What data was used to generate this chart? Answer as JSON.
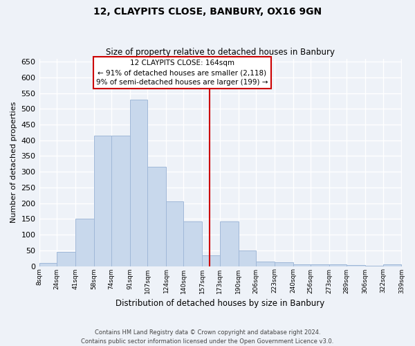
{
  "title": "12, CLAYPITS CLOSE, BANBURY, OX16 9GN",
  "subtitle": "Size of property relative to detached houses in Banbury",
  "xlabel": "Distribution of detached houses by size in Banbury",
  "ylabel": "Number of detached properties",
  "bar_color": "#c8d8ec",
  "bar_edge_color": "#a0b8d8",
  "background_color": "#eef2f8",
  "grid_color": "#ffffff",
  "annotation_box_color": "#cc0000",
  "vline_color": "#cc0000",
  "vline_x": 164,
  "annotation_title": "12 CLAYPITS CLOSE: 164sqm",
  "annotation_line1": "← 91% of detached houses are smaller (2,118)",
  "annotation_line2": "9% of semi-detached houses are larger (199) →",
  "bin_edges": [
    8,
    24,
    41,
    58,
    74,
    91,
    107,
    124,
    140,
    157,
    173,
    190,
    206,
    223,
    240,
    256,
    273,
    289,
    306,
    322,
    339
  ],
  "bin_labels": [
    "8sqm",
    "24sqm",
    "41sqm",
    "58sqm",
    "74sqm",
    "91sqm",
    "107sqm",
    "124sqm",
    "140sqm",
    "157sqm",
    "173sqm",
    "190sqm",
    "206sqm",
    "223sqm",
    "240sqm",
    "256sqm",
    "273sqm",
    "289sqm",
    "306sqm",
    "322sqm",
    "339sqm"
  ],
  "bar_heights": [
    10,
    45,
    150,
    415,
    415,
    530,
    315,
    205,
    143,
    35,
    143,
    50,
    15,
    13,
    5,
    5,
    5,
    3,
    2,
    5
  ],
  "ylim": [
    0,
    660
  ],
  "yticks": [
    0,
    50,
    100,
    150,
    200,
    250,
    300,
    350,
    400,
    450,
    500,
    550,
    600,
    650
  ],
  "footer_line1": "Contains HM Land Registry data © Crown copyright and database right 2024.",
  "footer_line2": "Contains public sector information licensed under the Open Government Licence v3.0."
}
